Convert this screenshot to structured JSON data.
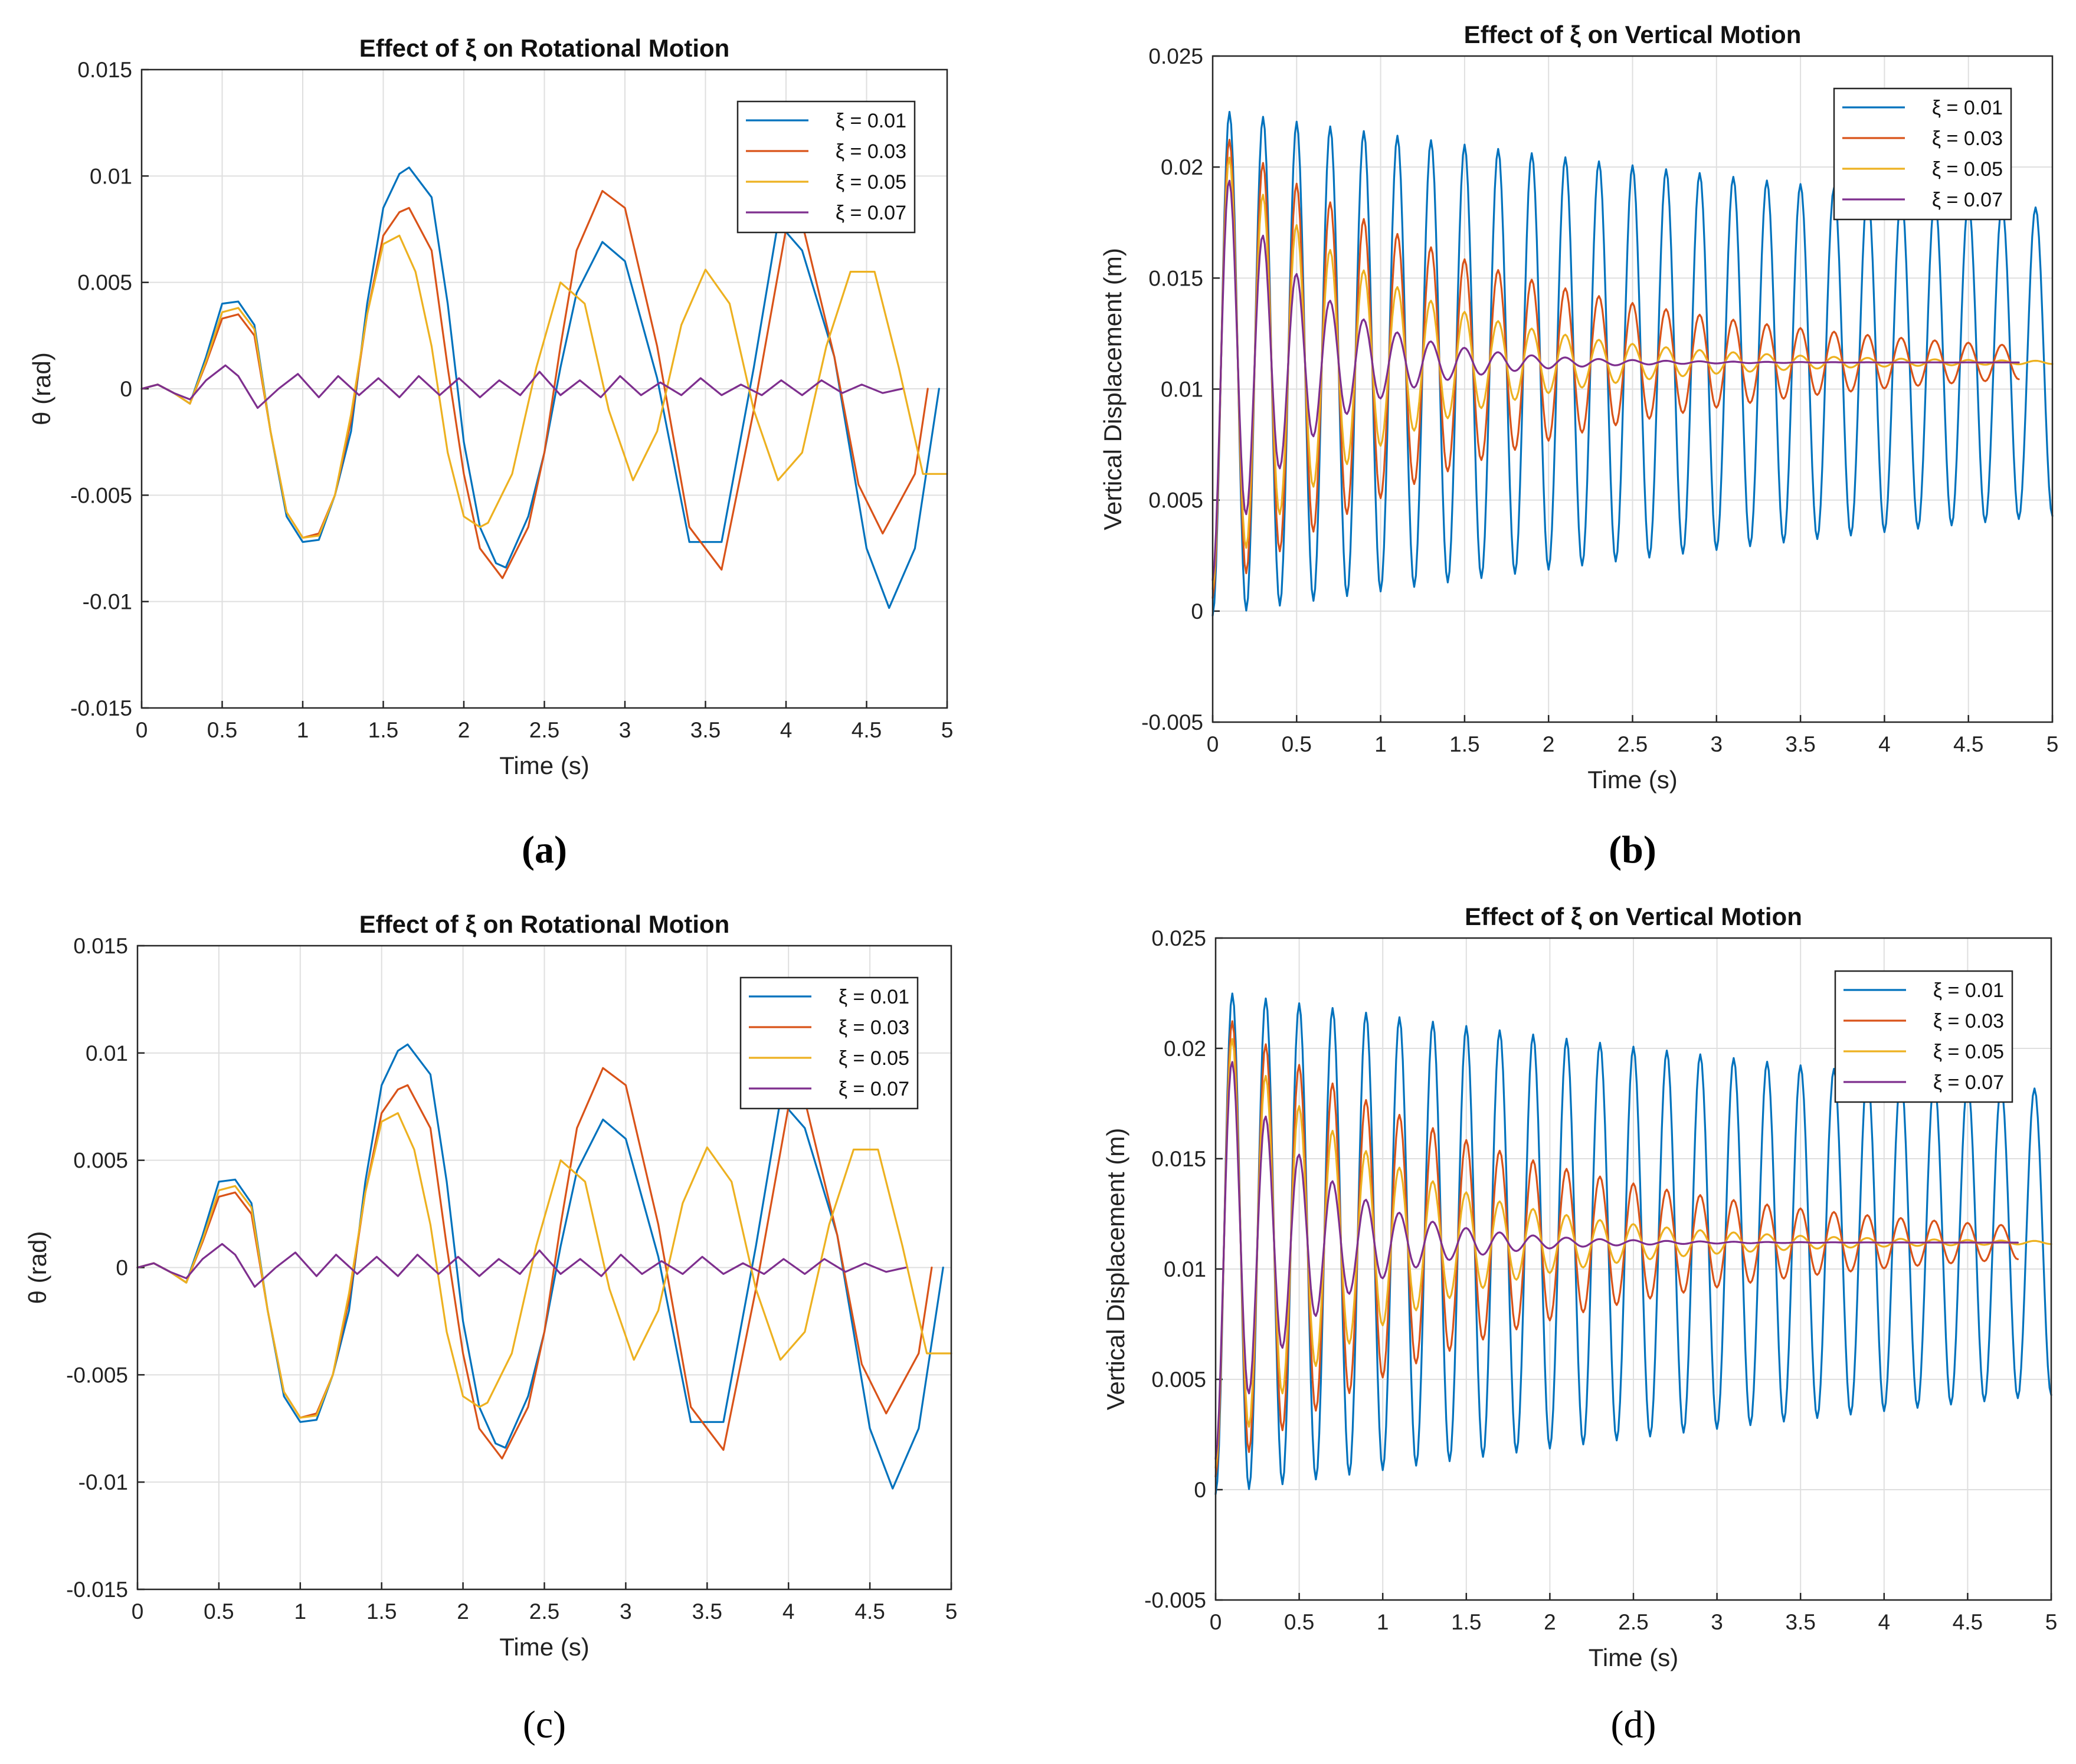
{
  "colors": [
    "#0072BD",
    "#D95319",
    "#EDB120",
    "#7E2F8E"
  ],
  "chart_data": [
    {
      "panel": "(a)",
      "type": "line",
      "title": "Effect of ξ on Rotational Motion",
      "xlabel": "Time (s)",
      "ylabel": "θ (rad)",
      "xlim": [
        0,
        5
      ],
      "ylim": [
        -0.015,
        0.015
      ],
      "xticks": [
        "0",
        "0.5",
        "1",
        "1.5",
        "2",
        "2.5",
        "3",
        "3.5",
        "4",
        "4.5",
        "5"
      ],
      "yticks": [
        "-0.015",
        "-0.01",
        "-0.005",
        "0",
        "0.005",
        "0.01",
        "0.015"
      ],
      "grid": true,
      "legend_position": "top-right",
      "series": [
        {
          "name": "ξ = 0.01",
          "x": [
            0,
            0.1,
            0.2,
            0.3,
            0.4,
            0.5,
            0.6,
            0.7,
            0.8,
            0.9,
            1.0,
            1.1,
            1.2,
            1.3,
            1.4,
            1.5,
            1.6,
            1.66,
            1.8,
            1.9,
            2.0,
            2.1,
            2.2,
            2.26,
            2.4,
            2.5,
            2.6,
            2.7,
            2.86,
            3.0,
            3.2,
            3.4,
            3.6,
            3.8,
            3.95,
            4.1,
            4.3,
            4.5,
            4.64,
            4.8,
            4.95
          ],
          "y": [
            0,
            0.0002,
            -0.0002,
            -0.0007,
            0.0015,
            0.004,
            0.0041,
            0.003,
            -0.002,
            -0.006,
            -0.0072,
            -0.0071,
            -0.005,
            -0.002,
            0.004,
            0.0085,
            0.0101,
            0.0104,
            0.009,
            0.004,
            -0.0025,
            -0.0065,
            -0.0082,
            -0.0084,
            -0.006,
            -0.003,
            0.001,
            0.0045,
            0.0069,
            0.006,
            0.0005,
            -0.0072,
            -0.0072,
            0.001,
            0.0078,
            0.0065,
            0.0015,
            -0.0075,
            -0.0103,
            -0.0075,
            0.0
          ]
        },
        {
          "name": "ξ = 0.03",
          "x": [
            0,
            0.1,
            0.2,
            0.3,
            0.4,
            0.5,
            0.6,
            0.7,
            0.8,
            0.9,
            1.0,
            1.1,
            1.2,
            1.3,
            1.4,
            1.5,
            1.6,
            1.66,
            1.8,
            1.9,
            2.0,
            2.1,
            2.24,
            2.4,
            2.5,
            2.6,
            2.7,
            2.86,
            3.0,
            3.2,
            3.4,
            3.6,
            3.8,
            4.0,
            4.1,
            4.3,
            4.45,
            4.6,
            4.8,
            4.88
          ],
          "y": [
            0,
            0.0002,
            -0.0002,
            -0.0007,
            0.0012,
            0.0033,
            0.0035,
            0.0025,
            -0.002,
            -0.0058,
            -0.007,
            -0.0068,
            -0.005,
            -0.0015,
            0.0035,
            0.0072,
            0.0083,
            0.0085,
            0.0065,
            0.001,
            -0.004,
            -0.0075,
            -0.0089,
            -0.0065,
            -0.003,
            0.002,
            0.0065,
            0.0093,
            0.0085,
            0.002,
            -0.0065,
            -0.0085,
            -0.001,
            0.0075,
            0.0078,
            0.0015,
            -0.0045,
            -0.0068,
            -0.004,
            0.0
          ]
        },
        {
          "name": "ξ = 0.05",
          "x": [
            0,
            0.1,
            0.2,
            0.3,
            0.4,
            0.5,
            0.6,
            0.7,
            0.8,
            0.9,
            1.0,
            1.1,
            1.2,
            1.3,
            1.4,
            1.5,
            1.6,
            1.7,
            1.8,
            1.9,
            2.0,
            2.1,
            2.15,
            2.3,
            2.45,
            2.6,
            2.75,
            2.9,
            3.05,
            3.2,
            3.35,
            3.5,
            3.65,
            3.8,
            3.95,
            4.1,
            4.25,
            4.4,
            4.55,
            4.7,
            4.85,
            5.0
          ],
          "y": [
            0,
            0.0002,
            -0.0002,
            -0.0007,
            0.0013,
            0.0036,
            0.0038,
            0.0028,
            -0.002,
            -0.0058,
            -0.007,
            -0.0069,
            -0.005,
            -0.0012,
            0.0035,
            0.0068,
            0.0072,
            0.0055,
            0.002,
            -0.003,
            -0.006,
            -0.0065,
            -0.0063,
            -0.004,
            0.001,
            0.005,
            0.004,
            -0.001,
            -0.0043,
            -0.002,
            0.003,
            0.0056,
            0.004,
            -0.001,
            -0.0043,
            -0.003,
            0.002,
            0.0055,
            0.0055,
            0.001,
            -0.004,
            -0.004
          ]
        },
        {
          "name": "ξ = 0.07",
          "x": [
            0,
            0.1,
            0.2,
            0.3,
            0.4,
            0.52,
            0.6,
            0.72,
            0.85,
            0.97,
            1.1,
            1.22,
            1.35,
            1.47,
            1.6,
            1.72,
            1.85,
            1.97,
            2.1,
            2.22,
            2.35,
            2.47,
            2.6,
            2.72,
            2.85,
            2.97,
            3.1,
            3.22,
            3.35,
            3.47,
            3.6,
            3.72,
            3.85,
            3.97,
            4.1,
            4.22,
            4.35,
            4.47,
            4.6,
            4.72
          ],
          "y": [
            0,
            0.0002,
            -0.0002,
            -0.0005,
            0.0004,
            0.0011,
            0.0006,
            -0.0009,
            0.0,
            0.0007,
            -0.0004,
            0.0006,
            -0.0003,
            0.0005,
            -0.0004,
            0.0006,
            -0.0003,
            0.0005,
            -0.0004,
            0.0004,
            -0.0003,
            0.0008,
            -0.0003,
            0.0004,
            -0.0004,
            0.0006,
            -0.0003,
            0.0003,
            -0.0003,
            0.0005,
            -0.0003,
            0.0002,
            -0.0003,
            0.0004,
            -0.0003,
            0.0004,
            -0.0002,
            0.0002,
            -0.0002,
            0.0
          ]
        }
      ]
    },
    {
      "panel": "(b)",
      "type": "line",
      "title": "Effect of ξ on Vertical Motion",
      "xlabel": "Time (s)",
      "ylabel": "Vertical Displacement (m)",
      "xlim": [
        0,
        5
      ],
      "ylim": [
        -0.005,
        0.025
      ],
      "xticks": [
        "0",
        "0.5",
        "1",
        "1.5",
        "2",
        "2.5",
        "3",
        "3.5",
        "4",
        "4.5",
        "5"
      ],
      "yticks": [
        "-0.005",
        "0",
        "0.005",
        "0.01",
        "0.015",
        "0.02",
        "0.025"
      ],
      "grid": true,
      "legend_position": "top-right",
      "series": [
        {
          "name": "ξ = 0.01",
          "oscillation": {
            "mean": 0.0112,
            "amp0": 0.0114,
            "decay": 0.1,
            "period": 0.2,
            "t_end": 5.0
          }
        },
        {
          "name": "ξ = 0.03",
          "oscillation": {
            "mean": 0.0112,
            "amp0": 0.0106,
            "decay": 0.55,
            "period": 0.2,
            "t_end": 4.8
          }
        },
        {
          "name": "ξ = 0.05",
          "oscillation": {
            "mean": 0.0112,
            "amp0": 0.0102,
            "decay": 1.0,
            "period": 0.2,
            "t_end": 5.0
          }
        },
        {
          "name": "ξ = 0.07",
          "oscillation": {
            "mean": 0.0112,
            "amp0": 0.0098,
            "decay": 1.8,
            "period": 0.2,
            "t_end": 4.8
          }
        }
      ]
    },
    {
      "panel": "(c)",
      "type": "line",
      "title": "Effect of ξ on Rotational Motion",
      "xlabel": "Time (s)",
      "ylabel": "θ (rad)",
      "xlim": [
        0,
        5
      ],
      "ylim": [
        -0.015,
        0.015
      ],
      "xticks": [
        "0",
        "0.5",
        "1",
        "1.5",
        "2",
        "2.5",
        "3",
        "3.5",
        "4",
        "4.5",
        "5"
      ],
      "yticks": [
        "-0.015",
        "-0.01",
        "-0.005",
        "0",
        "0.005",
        "0.01",
        "0.015"
      ],
      "grid": true,
      "legend_position": "top-right",
      "series": [
        {
          "name": "ξ = 0.01",
          "x": [
            0,
            0.1,
            0.2,
            0.3,
            0.4,
            0.5,
            0.6,
            0.7,
            0.8,
            0.9,
            1.0,
            1.1,
            1.2,
            1.3,
            1.4,
            1.5,
            1.6,
            1.66,
            1.8,
            1.9,
            2.0,
            2.1,
            2.2,
            2.26,
            2.4,
            2.5,
            2.6,
            2.7,
            2.86,
            3.0,
            3.2,
            3.4,
            3.6,
            3.8,
            3.95,
            4.1,
            4.3,
            4.5,
            4.64,
            4.8,
            4.95
          ],
          "y": [
            0,
            0.0002,
            -0.0002,
            -0.0007,
            0.0015,
            0.004,
            0.0041,
            0.003,
            -0.002,
            -0.006,
            -0.0072,
            -0.0071,
            -0.005,
            -0.002,
            0.004,
            0.0085,
            0.0101,
            0.0104,
            0.009,
            0.004,
            -0.0025,
            -0.0065,
            -0.0082,
            -0.0084,
            -0.006,
            -0.003,
            0.001,
            0.0045,
            0.0069,
            0.006,
            0.0005,
            -0.0072,
            -0.0072,
            0.001,
            0.0078,
            0.0065,
            0.0015,
            -0.0075,
            -0.0103,
            -0.0075,
            0.0
          ]
        },
        {
          "name": "ξ = 0.03",
          "x": [
            0,
            0.1,
            0.2,
            0.3,
            0.4,
            0.5,
            0.6,
            0.7,
            0.8,
            0.9,
            1.0,
            1.1,
            1.2,
            1.3,
            1.4,
            1.5,
            1.6,
            1.66,
            1.8,
            1.9,
            2.0,
            2.1,
            2.24,
            2.4,
            2.5,
            2.6,
            2.7,
            2.86,
            3.0,
            3.2,
            3.4,
            3.6,
            3.8,
            4.0,
            4.1,
            4.3,
            4.45,
            4.6,
            4.8,
            4.88
          ],
          "y": [
            0,
            0.0002,
            -0.0002,
            -0.0007,
            0.0012,
            0.0033,
            0.0035,
            0.0025,
            -0.002,
            -0.0058,
            -0.007,
            -0.0068,
            -0.005,
            -0.0015,
            0.0035,
            0.0072,
            0.0083,
            0.0085,
            0.0065,
            0.001,
            -0.004,
            -0.0075,
            -0.0089,
            -0.0065,
            -0.003,
            0.002,
            0.0065,
            0.0093,
            0.0085,
            0.002,
            -0.0065,
            -0.0085,
            -0.001,
            0.0075,
            0.0078,
            0.0015,
            -0.0045,
            -0.0068,
            -0.004,
            0.0
          ]
        },
        {
          "name": "ξ = 0.05",
          "x": [
            0,
            0.1,
            0.2,
            0.3,
            0.4,
            0.5,
            0.6,
            0.7,
            0.8,
            0.9,
            1.0,
            1.1,
            1.2,
            1.3,
            1.4,
            1.5,
            1.6,
            1.7,
            1.8,
            1.9,
            2.0,
            2.1,
            2.15,
            2.3,
            2.45,
            2.6,
            2.75,
            2.9,
            3.05,
            3.2,
            3.35,
            3.5,
            3.65,
            3.8,
            3.95,
            4.1,
            4.25,
            4.4,
            4.55,
            4.7,
            4.85,
            5.0
          ],
          "y": [
            0,
            0.0002,
            -0.0002,
            -0.0007,
            0.0013,
            0.0036,
            0.0038,
            0.0028,
            -0.002,
            -0.0058,
            -0.007,
            -0.0069,
            -0.005,
            -0.0012,
            0.0035,
            0.0068,
            0.0072,
            0.0055,
            0.002,
            -0.003,
            -0.006,
            -0.0065,
            -0.0063,
            -0.004,
            0.001,
            0.005,
            0.004,
            -0.001,
            -0.0043,
            -0.002,
            0.003,
            0.0056,
            0.004,
            -0.001,
            -0.0043,
            -0.003,
            0.002,
            0.0055,
            0.0055,
            0.001,
            -0.004,
            -0.004
          ]
        },
        {
          "name": "ξ = 0.07",
          "x": [
            0,
            0.1,
            0.2,
            0.3,
            0.4,
            0.52,
            0.6,
            0.72,
            0.85,
            0.97,
            1.1,
            1.22,
            1.35,
            1.47,
            1.6,
            1.72,
            1.85,
            1.97,
            2.1,
            2.22,
            2.35,
            2.47,
            2.6,
            2.72,
            2.85,
            2.97,
            3.1,
            3.22,
            3.35,
            3.47,
            3.6,
            3.72,
            3.85,
            3.97,
            4.1,
            4.22,
            4.35,
            4.47,
            4.6,
            4.72
          ],
          "y": [
            0,
            0.0002,
            -0.0002,
            -0.0005,
            0.0004,
            0.0011,
            0.0006,
            -0.0009,
            0.0,
            0.0007,
            -0.0004,
            0.0006,
            -0.0003,
            0.0005,
            -0.0004,
            0.0006,
            -0.0003,
            0.0005,
            -0.0004,
            0.0004,
            -0.0003,
            0.0008,
            -0.0003,
            0.0004,
            -0.0004,
            0.0006,
            -0.0003,
            0.0003,
            -0.0003,
            0.0005,
            -0.0003,
            0.0002,
            -0.0003,
            0.0004,
            -0.0003,
            0.0004,
            -0.0002,
            0.0002,
            -0.0002,
            0.0
          ]
        }
      ]
    },
    {
      "panel": "(d)",
      "type": "line",
      "title": "Effect of ξ on Vertical Motion",
      "xlabel": "Time (s)",
      "ylabel": "Vertical Displacement (m)",
      "xlim": [
        0,
        5
      ],
      "ylim": [
        -0.005,
        0.025
      ],
      "xticks": [
        "0",
        "0.5",
        "1",
        "1.5",
        "2",
        "2.5",
        "3",
        "3.5",
        "4",
        "4.5",
        "5"
      ],
      "yticks": [
        "-0.005",
        "0",
        "0.005",
        "0.01",
        "0.015",
        "0.02",
        "0.025"
      ],
      "grid": true,
      "legend_position": "top-right",
      "series": [
        {
          "name": "ξ = 0.01",
          "oscillation": {
            "mean": 0.0112,
            "amp0": 0.0114,
            "decay": 0.1,
            "period": 0.2,
            "t_end": 5.0
          }
        },
        {
          "name": "ξ = 0.03",
          "oscillation": {
            "mean": 0.0112,
            "amp0": 0.0106,
            "decay": 0.55,
            "period": 0.2,
            "t_end": 4.8
          }
        },
        {
          "name": "ξ = 0.05",
          "oscillation": {
            "mean": 0.0112,
            "amp0": 0.0102,
            "decay": 1.0,
            "period": 0.2,
            "t_end": 5.0
          }
        },
        {
          "name": "ξ = 0.07",
          "oscillation": {
            "mean": 0.0112,
            "amp0": 0.0098,
            "decay": 1.8,
            "period": 0.2,
            "t_end": 4.8
          }
        }
      ]
    }
  ]
}
